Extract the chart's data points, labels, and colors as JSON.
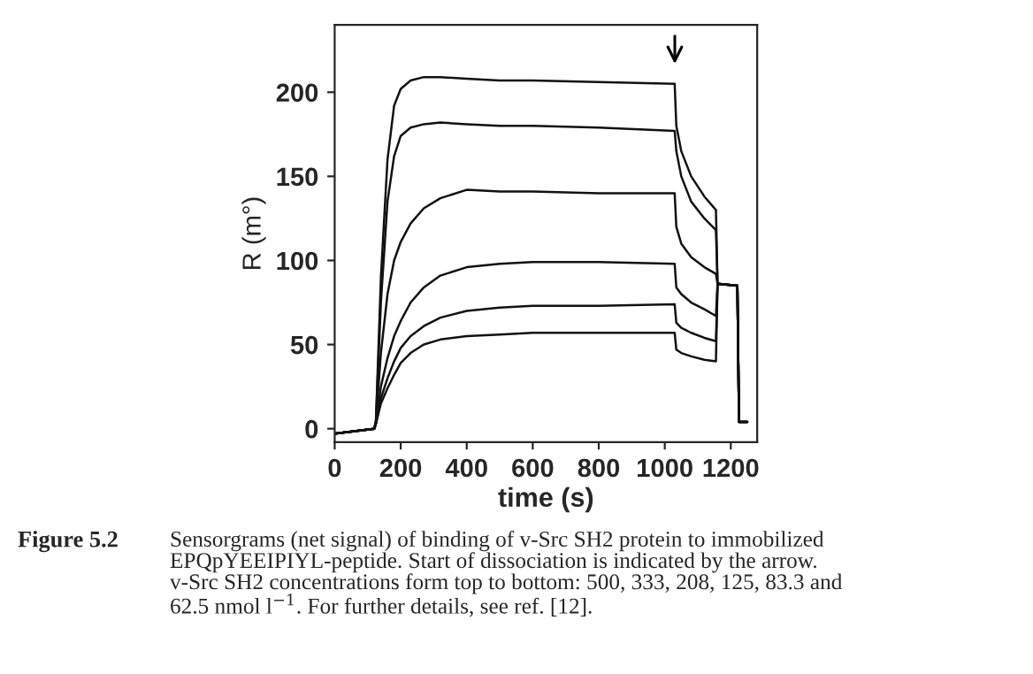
{
  "chart_data": {
    "type": "line",
    "xlabel": "time (s)",
    "ylabel": "R (m°)",
    "xlim": [
      0,
      1280
    ],
    "ylim": [
      -8,
      240
    ],
    "xticks": [
      0,
      200,
      400,
      600,
      800,
      1000,
      1200
    ],
    "yticks": [
      0,
      50,
      100,
      150,
      200
    ],
    "grid": false,
    "marker": "none",
    "line_style": "solid",
    "x": [
      0,
      120,
      125,
      140,
      160,
      180,
      200,
      230,
      270,
      320,
      400,
      500,
      600,
      800,
      1030,
      1035,
      1050,
      1080,
      1120,
      1155,
      1160,
      1165,
      1220,
      1225,
      1250
    ],
    "series": [
      {
        "color": "#111111",
        "values": [
          -3,
          0,
          5,
          90,
          160,
          192,
          202,
          207,
          209,
          209,
          208,
          207,
          207,
          206,
          205,
          180,
          165,
          150,
          138,
          130,
          86,
          86,
          85,
          4,
          4
        ]
      },
      {
        "color": "#111111",
        "values": [
          -3,
          0,
          5,
          75,
          135,
          162,
          174,
          179,
          181,
          182,
          181,
          180,
          180,
          179,
          177,
          165,
          150,
          135,
          125,
          118,
          86,
          86,
          85,
          4,
          4
        ]
      },
      {
        "color": "#111111",
        "values": [
          -3,
          0,
          4,
          45,
          80,
          100,
          111,
          122,
          131,
          137,
          142,
          141,
          141,
          140,
          140,
          120,
          110,
          102,
          96,
          92,
          86,
          86,
          85,
          4,
          4
        ]
      },
      {
        "color": "#111111",
        "values": [
          -3,
          0,
          3,
          25,
          42,
          55,
          64,
          75,
          84,
          91,
          96,
          98,
          99,
          99,
          98,
          84,
          80,
          75,
          71,
          67,
          86,
          86,
          85,
          4,
          4
        ]
      },
      {
        "color": "#111111",
        "values": [
          -3,
          0,
          3,
          18,
          30,
          40,
          48,
          55,
          61,
          66,
          70,
          72,
          73,
          73,
          74,
          63,
          60,
          57,
          54,
          52,
          86,
          86,
          85,
          4,
          4
        ]
      },
      {
        "color": "#111111",
        "values": [
          -3,
          0,
          3,
          15,
          24,
          32,
          39,
          45,
          50,
          53,
          55,
          56,
          57,
          57,
          57,
          47,
          45,
          43,
          41,
          40,
          86,
          86,
          85,
          4,
          4
        ]
      }
    ],
    "annotations": [
      "Figure 5.2",
      "Sensorgrams (net signal) of binding of v-Src SH2 protein to immobilized\nEPQpYEEIPIYL-peptide. Start of dissociation is indicated by the arrow.\nv-Src SH2 concentrations form top to bottom: 500, 333, 208, 125, 83.3 and\n62.5 nmol l$^{−1}$. For further details, see ref. [12]."
    ]
  }
}
